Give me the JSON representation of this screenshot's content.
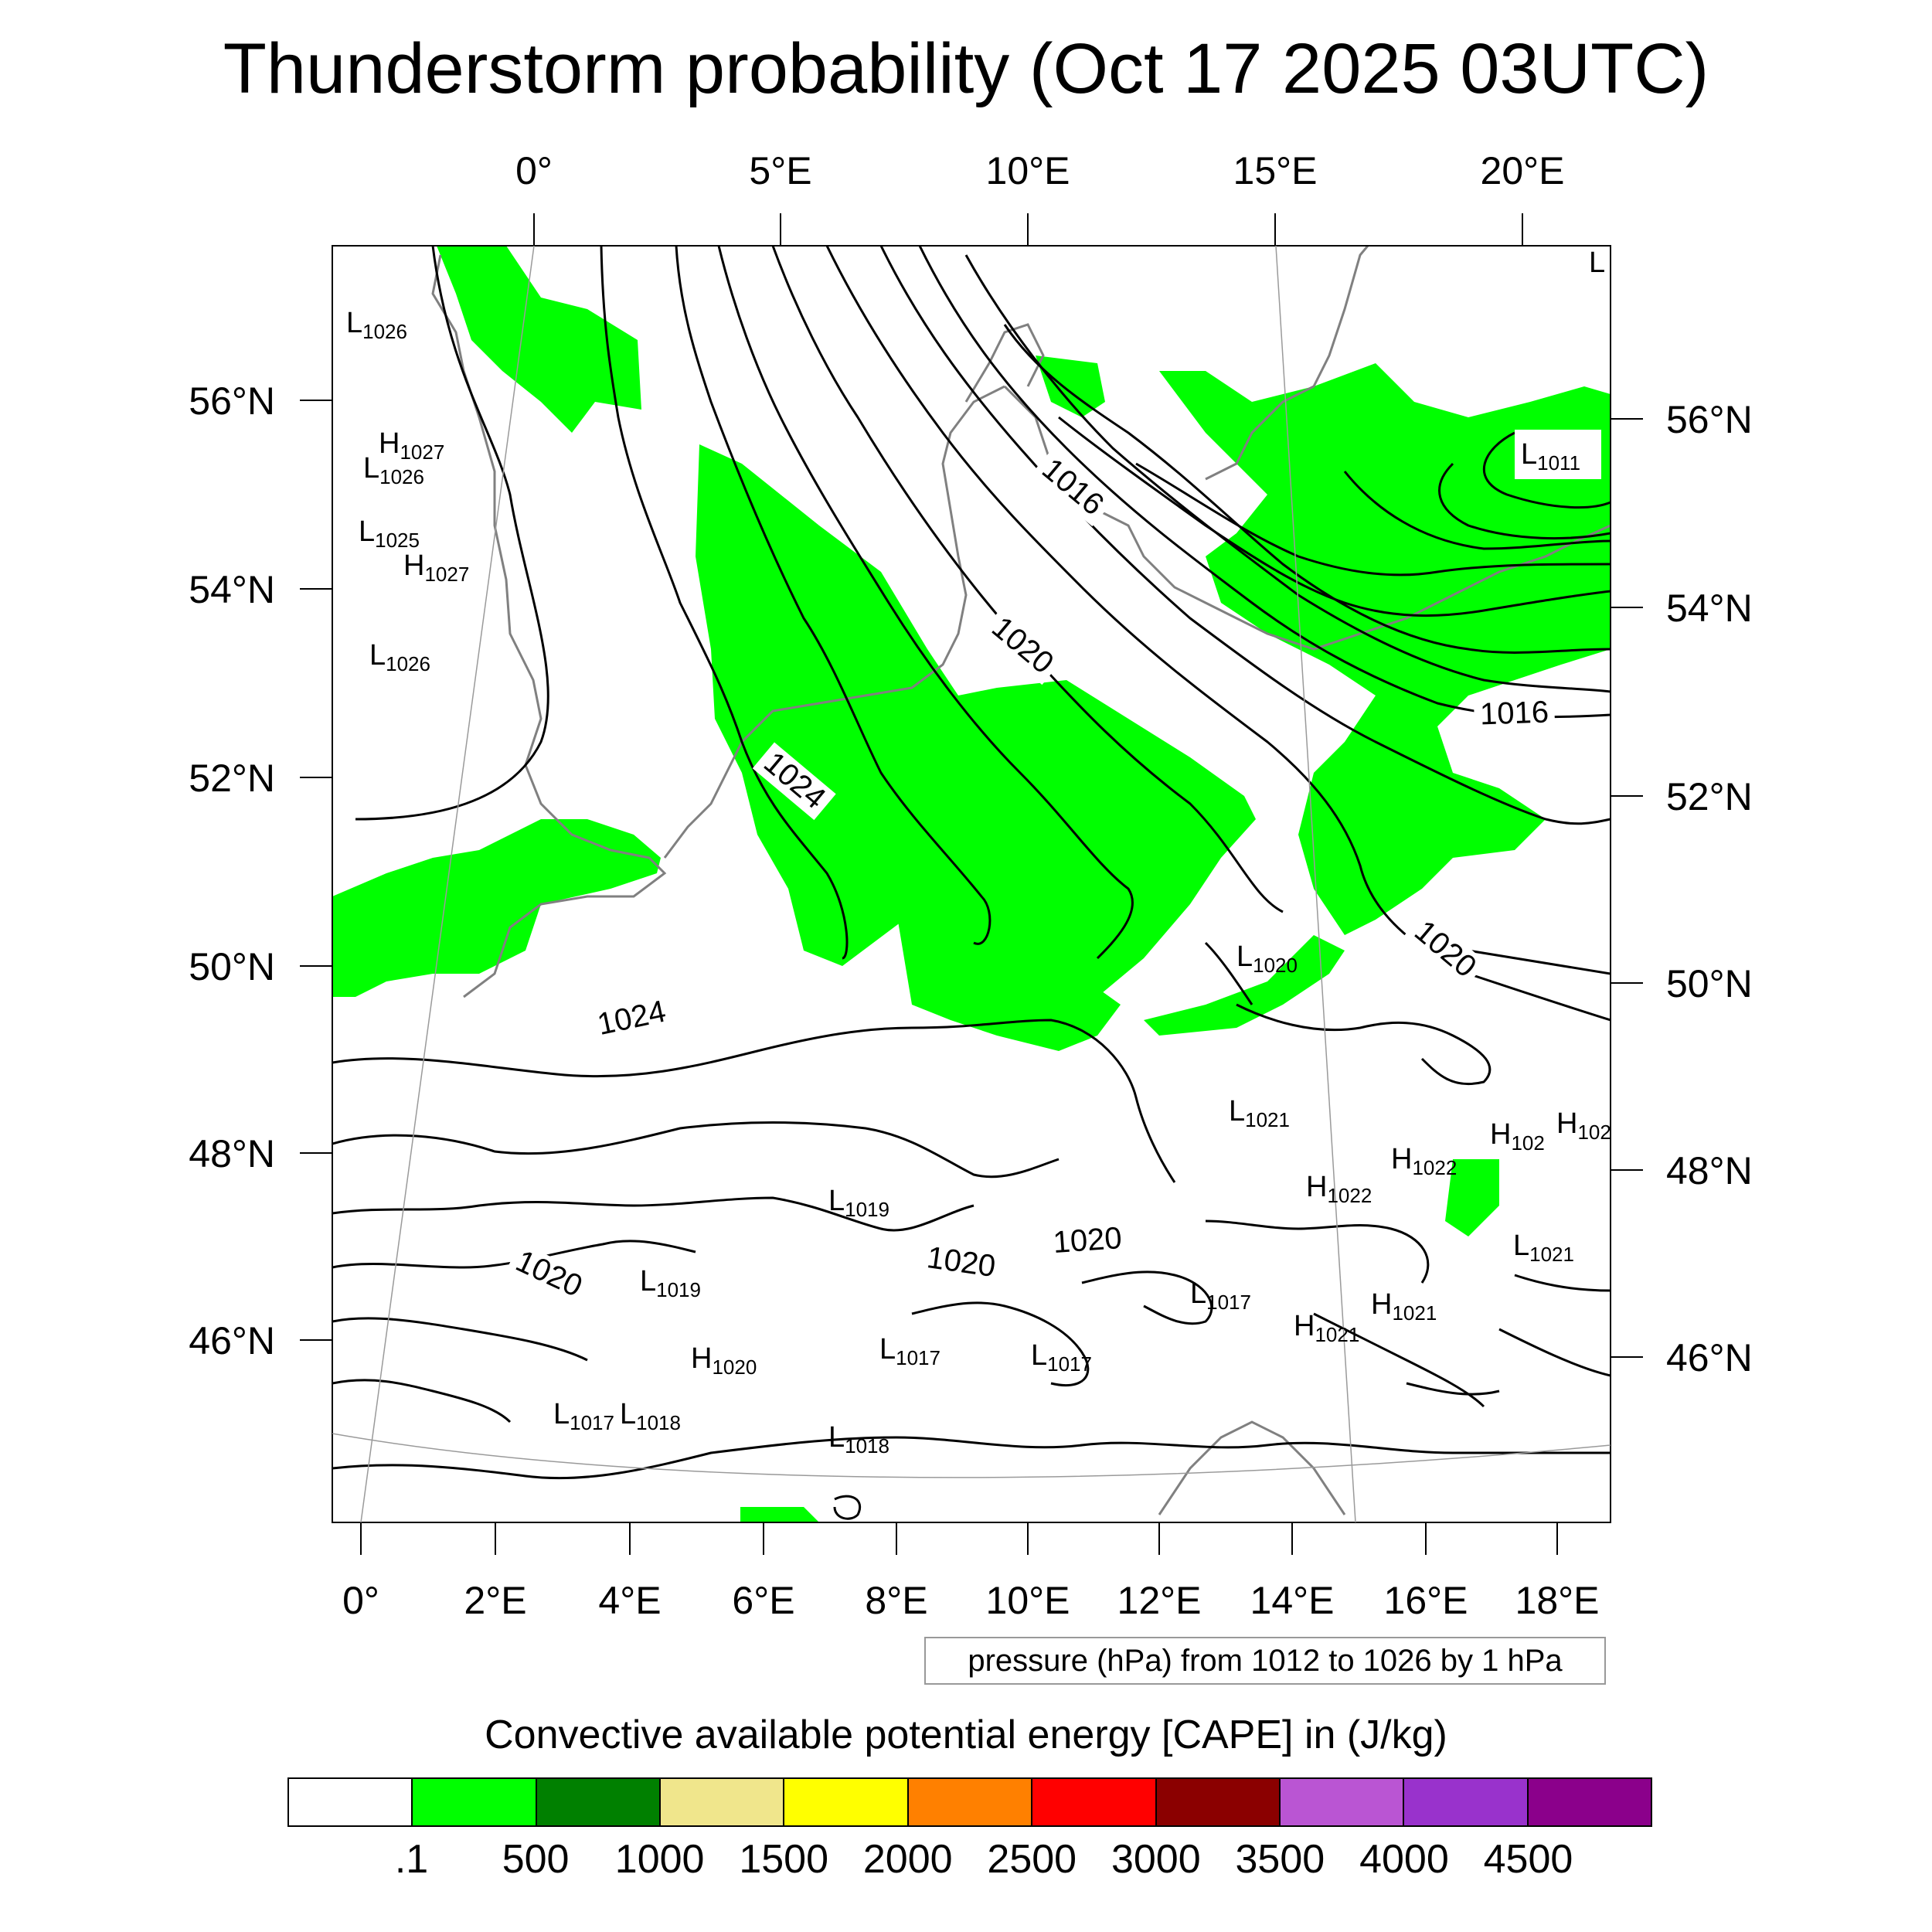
{
  "title": "Thunderstorm probability (Oct 17 2025 03UTC)",
  "top_lon_labels": [
    "0°",
    "5°E",
    "10°E",
    "15°E",
    "20°E"
  ],
  "bottom_lon_labels": [
    "0°",
    "2°E",
    "4°E",
    "6°E",
    "8°E",
    "10°E",
    "12°E",
    "14°E",
    "16°E",
    "18°E"
  ],
  "left_lat_labels": [
    "56°N",
    "54°N",
    "52°N",
    "50°N",
    "48°N",
    "46°N"
  ],
  "right_lat_labels": [
    "56°N",
    "54°N",
    "52°N",
    "50°N",
    "48°N",
    "46°N"
  ],
  "contour_labels": [
    "1016",
    "1020",
    "1024",
    "1024",
    "1016",
    "1020",
    "1020",
    "1020",
    "1020"
  ],
  "pressure_centers": [
    {
      "type": "L",
      "value": "1026"
    },
    {
      "type": "H",
      "value": "1027"
    },
    {
      "type": "L",
      "value": "1026"
    },
    {
      "type": "L",
      "value": "1025"
    },
    {
      "type": "H",
      "value": "1027"
    },
    {
      "type": "L",
      "value": "1026"
    },
    {
      "type": "L",
      "value": "1011"
    },
    {
      "type": "L",
      "value": "1020"
    },
    {
      "type": "L",
      "value": "1021"
    },
    {
      "type": "H",
      "value": "1022"
    },
    {
      "type": "H",
      "value": "1022"
    },
    {
      "type": "H",
      "value": "102"
    },
    {
      "type": "H",
      "value": "102"
    },
    {
      "type": "L",
      "value": "1019"
    },
    {
      "type": "L",
      "value": "1019"
    },
    {
      "type": "L",
      "value": "1021"
    },
    {
      "type": "L",
      "value": "1017"
    },
    {
      "type": "H",
      "value": "1021"
    },
    {
      "type": "H",
      "value": "1021"
    },
    {
      "type": "H",
      "value": "1020"
    },
    {
      "type": "L",
      "value": "1017"
    },
    {
      "type": "L",
      "value": "1017"
    },
    {
      "type": "L",
      "value": "1017"
    },
    {
      "type": "L",
      "value": "1018"
    },
    {
      "type": "L",
      "value": "1018"
    },
    {
      "type": "L",
      "value": ""
    }
  ],
  "note": "pressure (hPa) from 1012 to 1026 by 1 hPa",
  "colorbar": {
    "title": "Convective available potential energy [CAPE] in (J/kg)",
    "colors": [
      "#ffffff",
      "#00ff00",
      "#008000",
      "#f0e68c",
      "#ffff00",
      "#ff8000",
      "#ff0000",
      "#8b0000",
      "#ba55d3",
      "#9932cc",
      "#8b008b"
    ],
    "labels": [
      ".1",
      "500",
      "1000",
      "1500",
      "2000",
      "2500",
      "3000",
      "3500",
      "4000",
      "4500"
    ]
  },
  "colors": {
    "cape_fill": "#00ff00",
    "coastline": "#808080",
    "isobar": "#000000"
  }
}
